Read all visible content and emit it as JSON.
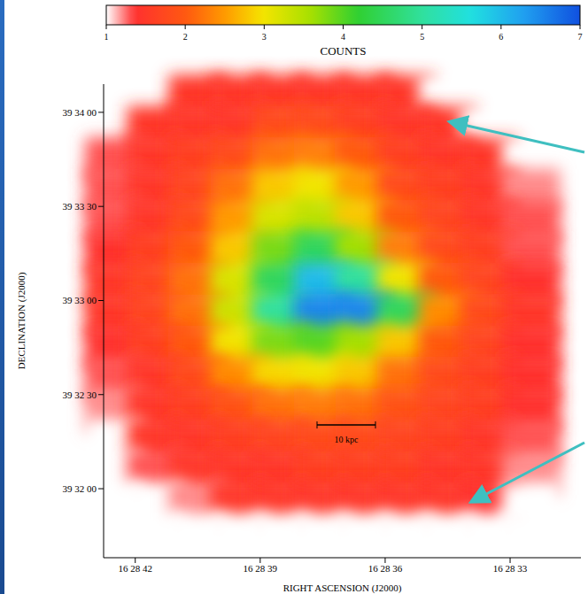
{
  "chart_data": {
    "type": "heatmap",
    "x_label": "RIGHT ASCENSION (J2000)",
    "y_label": "DECLINATION (J2000)",
    "xlim": [
      42.76,
      31.3
    ],
    "xticks": [
      {
        "value": 42,
        "label": "16 28 42"
      },
      {
        "value": 39,
        "label": "16 28 39"
      },
      {
        "value": 36,
        "label": "16 28 36"
      },
      {
        "value": 33,
        "label": "16 28 33"
      }
    ],
    "ylim": [
      1898,
      2049
    ],
    "yticks": [
      {
        "value": 2040,
        "label": "39 34 00"
      },
      {
        "value": 2010,
        "label": "39 33 30"
      },
      {
        "value": 1980,
        "label": "39 33 00"
      },
      {
        "value": 1950,
        "label": "39 32 30"
      },
      {
        "value": 1920,
        "label": "39 32 00"
      }
    ],
    "x": [
      42.5,
      41.5,
      40.5,
      39.5,
      38.5,
      37.5,
      36.5,
      35.5,
      34.5,
      33.5,
      32.5
    ],
    "y": [
      2045,
      2035,
      2025,
      2015,
      2005,
      1995,
      1985,
      1975,
      1965,
      1955,
      1945,
      1935,
      1925,
      1915,
      1905
    ],
    "cells": [
      [
        1,
        1,
        1.5,
        1.5,
        1.5,
        1.5,
        1.5,
        1.5,
        1,
        1,
        1
      ],
      [
        1,
        1.5,
        1.5,
        1.5,
        1.8,
        1.8,
        1.6,
        1.5,
        1.5,
        1,
        1
      ],
      [
        1.3,
        1.5,
        1.6,
        1.8,
        2.2,
        2.3,
        2,
        1.6,
        1.5,
        1.5,
        1
      ],
      [
        1.3,
        1.5,
        1.7,
        2.2,
        2.8,
        3,
        2.5,
        1.8,
        1.6,
        1.5,
        1.2
      ],
      [
        1.3,
        1.5,
        1.8,
        2.5,
        3.2,
        3.4,
        2.8,
        2,
        1.7,
        1.5,
        1.3
      ],
      [
        1.4,
        1.6,
        2,
        2.8,
        3.8,
        4.5,
        3.6,
        2.3,
        1.8,
        1.6,
        1.3
      ],
      [
        1.5,
        1.7,
        2.2,
        3.2,
        4.5,
        6,
        5,
        3,
        2,
        1.7,
        1.4
      ],
      [
        1.5,
        1.7,
        2.2,
        3.3,
        5,
        6.5,
        6.5,
        4.5,
        2.4,
        1.8,
        1.5
      ],
      [
        1.4,
        1.6,
        2,
        3,
        3.8,
        4,
        3.6,
        2.8,
        2,
        1.7,
        1.4
      ],
      [
        1.3,
        1.5,
        1.8,
        2.4,
        2.9,
        3,
        2.8,
        2.2,
        1.8,
        1.6,
        1.4
      ],
      [
        1.2,
        1.5,
        1.6,
        1.9,
        2.2,
        2.3,
        2.2,
        1.9,
        1.7,
        1.6,
        1.4
      ],
      [
        1,
        1.5,
        1.5,
        1.6,
        1.7,
        1.8,
        1.8,
        1.7,
        1.6,
        1.5,
        1.3
      ],
      [
        1,
        1.3,
        1.5,
        1.5,
        1.5,
        1.6,
        1.6,
        1.6,
        1.5,
        1.5,
        1.2
      ],
      [
        1,
        1,
        1.2,
        1.5,
        1.5,
        1.5,
        1.5,
        1.5,
        1.5,
        1.4,
        1
      ],
      [
        1,
        1,
        1,
        1,
        1,
        1,
        1,
        1,
        1,
        1,
        1
      ]
    ],
    "colorbar": {
      "label": "COUNTS",
      "range": [
        1,
        7
      ],
      "ticks": [
        1,
        2,
        3,
        4,
        5,
        6,
        7
      ]
    },
    "annotations": [
      "10 kpc"
    ]
  }
}
